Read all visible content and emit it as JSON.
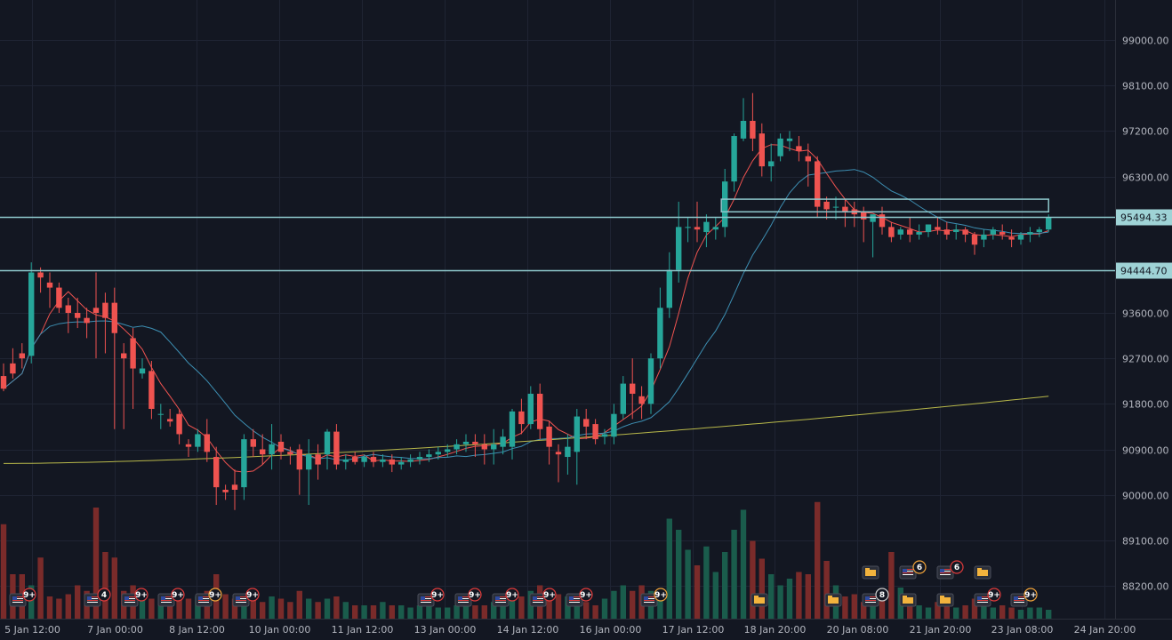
{
  "colors": {
    "background": "#131722",
    "grid": "#1f2433",
    "up": "#26a69a",
    "down": "#ef5350",
    "up_volume": "#1a5c4c",
    "down_volume": "#7a2b2a",
    "ma_fast": "#ef5350",
    "ma_slow": "#3d8fb3",
    "ma_long": "#b8b84a",
    "level_line": "#8ec9cd",
    "price_tag": "#9fd3d6",
    "event_badge_red": "#e03b3b",
    "event_badge_orange": "#f2a43a",
    "event_badge_gray": "#cccccc"
  },
  "chart_data": {
    "type": "candlestick",
    "y_ticks": [
      "99000.00",
      "98100.00",
      "97200.00",
      "96300.00",
      "93600.00",
      "92700.00",
      "91800.00",
      "90900.00",
      "90000.00",
      "89100.00",
      "88200.00"
    ],
    "x_ticks": [
      "5 Jan 12:00",
      "7 Jan 00:00",
      "8 Jan 12:00",
      "10 Jan 00:00",
      "11 Jan 12:00",
      "13 Jan 00:00",
      "14 Jan 12:00",
      "16 Jan 00:00",
      "17 Jan 12:00",
      "18 Jan 20:00",
      "20 Jan 08:00",
      "21 Jan 20:00",
      "23 Jan 08:00",
      "24 Jan 20:00"
    ],
    "ylim": [
      87800,
      99800
    ],
    "price_levels": [
      {
        "value": 95494.33,
        "label": "95494.33"
      },
      {
        "value": 94444.7,
        "label": "94444.70"
      }
    ],
    "zone": {
      "top": 95850,
      "bottom": 95600,
      "from_index": 78,
      "to_index": 113
    },
    "candles": [
      [
        92350,
        92600,
        92100,
        92050
      ],
      [
        92600,
        92900,
        92400,
        92300
      ],
      [
        92800,
        93000,
        92700,
        92500
      ],
      [
        92750,
        94600,
        94400,
        92600
      ],
      [
        94400,
        94500,
        94300,
        94000
      ],
      [
        94200,
        94400,
        94100,
        93700
      ],
      [
        94100,
        94200,
        93700,
        93600
      ],
      [
        93750,
        93900,
        93600,
        93200
      ],
      [
        93600,
        93900,
        93500,
        93300
      ],
      [
        93500,
        93700,
        93400,
        93100
      ],
      [
        93700,
        94400,
        93600,
        92700
      ],
      [
        93800,
        94000,
        93500,
        92800
      ],
      [
        93800,
        94100,
        93200,
        91300
      ],
      [
        92800,
        93000,
        92700,
        91300
      ],
      [
        93100,
        93300,
        92500,
        91700
      ],
      [
        92400,
        92700,
        92500,
        92300
      ],
      [
        92450,
        92650,
        91700,
        91500
      ],
      [
        91600,
        91800,
        91600,
        91300
      ],
      [
        91500,
        91700,
        91450,
        91350
      ],
      [
        91600,
        91700,
        91200,
        91000
      ],
      [
        91000,
        91100,
        90950,
        90750
      ],
      [
        90950,
        91300,
        91200,
        90850
      ],
      [
        91200,
        91500,
        90850,
        90650
      ],
      [
        90750,
        90950,
        90150,
        89800
      ],
      [
        90100,
        90200,
        90050,
        89900
      ],
      [
        90200,
        90500,
        90100,
        89700
      ],
      [
        90150,
        91200,
        91100,
        89900
      ],
      [
        91100,
        91300,
        90950,
        90750
      ],
      [
        90900,
        91200,
        90800,
        90600
      ],
      [
        90800,
        91400,
        91000,
        90500
      ],
      [
        91050,
        91200,
        90850,
        90700
      ],
      [
        90850,
        90950,
        90800,
        90600
      ],
      [
        90900,
        91000,
        90500,
        90000
      ],
      [
        90500,
        91100,
        90800,
        89800
      ],
      [
        90800,
        91000,
        90600,
        90300
      ],
      [
        90800,
        91300,
        91250,
        90500
      ],
      [
        91250,
        91400,
        90600,
        90500
      ],
      [
        90650,
        90800,
        90700,
        90500
      ],
      [
        90750,
        90850,
        90650,
        90600
      ],
      [
        90650,
        90800,
        90750,
        90550
      ],
      [
        90750,
        90850,
        90650,
        90550
      ],
      [
        90650,
        90800,
        90700,
        90550
      ],
      [
        90700,
        90800,
        90600,
        90450
      ],
      [
        90600,
        90750,
        90650,
        90500
      ],
      [
        90650,
        90800,
        90700,
        90550
      ],
      [
        90700,
        90850,
        90750,
        90600
      ],
      [
        90750,
        90900,
        90800,
        90650
      ],
      [
        90800,
        90950,
        90850,
        90700
      ],
      [
        90850,
        91000,
        90900,
        90750
      ],
      [
        90900,
        91100,
        91000,
        90800
      ],
      [
        91000,
        91200,
        91050,
        90850
      ],
      [
        91050,
        91200,
        91000,
        90750
      ],
      [
        91000,
        91200,
        90900,
        90600
      ],
      [
        90900,
        91300,
        91000,
        90600
      ],
      [
        90950,
        91300,
        91150,
        90800
      ],
      [
        90950,
        91700,
        91650,
        90700
      ],
      [
        91650,
        91900,
        91400,
        91200
      ],
      [
        91400,
        92150,
        92000,
        91300
      ],
      [
        92000,
        92200,
        91300,
        91100
      ],
      [
        91350,
        91450,
        90950,
        90600
      ],
      [
        90850,
        91000,
        90800,
        90250
      ],
      [
        90750,
        91200,
        90950,
        90400
      ],
      [
        90850,
        91700,
        91550,
        90200
      ],
      [
        91500,
        91700,
        91350,
        91100
      ],
      [
        91400,
        91500,
        91100,
        91000
      ],
      [
        91150,
        91300,
        91200,
        91000
      ],
      [
        91150,
        91800,
        91600,
        91000
      ],
      [
        91600,
        92350,
        92200,
        91500
      ],
      [
        92200,
        92700,
        92000,
        91500
      ],
      [
        91950,
        92150,
        91800,
        91500
      ],
      [
        91800,
        92800,
        92700,
        91600
      ],
      [
        92700,
        94100,
        93700,
        92500
      ],
      [
        93700,
        94800,
        94450,
        93500
      ],
      [
        94450,
        95800,
        95300,
        94200
      ],
      [
        95300,
        95500,
        95300,
        95000
      ],
      [
        95300,
        95800,
        95250,
        95000
      ],
      [
        95200,
        95550,
        95400,
        94900
      ],
      [
        95250,
        95500,
        95300,
        95050
      ],
      [
        95300,
        96450,
        96200,
        95100
      ],
      [
        96200,
        97150,
        97100,
        96000
      ],
      [
        97050,
        97850,
        97400,
        97000
      ],
      [
        97400,
        97950,
        97050,
        96800
      ],
      [
        97150,
        97350,
        96500,
        96300
      ],
      [
        96500,
        96950,
        96600,
        96200
      ],
      [
        96700,
        97150,
        97050,
        96600
      ],
      [
        97000,
        97200,
        97050,
        96800
      ],
      [
        96900,
        97100,
        96800,
        96600
      ],
      [
        96700,
        96950,
        96600,
        96100
      ],
      [
        96600,
        96700,
        95700,
        95500
      ],
      [
        95800,
        95900,
        95650,
        95450
      ],
      [
        95700,
        95900,
        95700,
        95450
      ],
      [
        95700,
        95850,
        95600,
        95300
      ],
      [
        95650,
        95800,
        95550,
        95300
      ],
      [
        95600,
        95700,
        95450,
        95000
      ],
      [
        95400,
        95500,
        95550,
        94700
      ],
      [
        95550,
        95700,
        95300,
        95150
      ],
      [
        95300,
        95400,
        95100,
        95000
      ],
      [
        95150,
        95300,
        95250,
        95050
      ],
      [
        95250,
        95500,
        95150,
        95000
      ],
      [
        95150,
        95350,
        95200,
        95050
      ],
      [
        95200,
        95350,
        95350,
        95100
      ],
      [
        95300,
        95500,
        95250,
        95150
      ],
      [
        95250,
        95400,
        95150,
        95050
      ],
      [
        95200,
        95350,
        95250,
        95050
      ],
      [
        95250,
        95300,
        95150,
        95000
      ],
      [
        95150,
        95200,
        94950,
        94750
      ],
      [
        95050,
        95250,
        95150,
        94900
      ],
      [
        95150,
        95300,
        95250,
        95050
      ],
      [
        95200,
        95350,
        95150,
        95050
      ],
      [
        95100,
        95250,
        95050,
        94900
      ],
      [
        95050,
        95200,
        95150,
        94950
      ],
      [
        95150,
        95300,
        95200,
        95000
      ],
      [
        95200,
        95300,
        95250,
        95100
      ],
      [
        95250,
        95550,
        95494,
        95200
      ]
    ],
    "ma_long_values": [
      90620,
      91950
    ]
  },
  "events": {
    "row1": [
      {
        "type": "us-flag",
        "count": "9+",
        "badge": "red"
      },
      {
        "type": "us-flag",
        "count": "4",
        "badge": "red"
      },
      {
        "type": "us-flag",
        "count": "9+",
        "badge": "red"
      },
      {
        "type": "us-flag",
        "count": "9+",
        "badge": "red"
      },
      {
        "type": "us-flag",
        "count": "9+",
        "badge": "orange"
      },
      {
        "type": "us-flag",
        "count": "9+",
        "badge": "red"
      },
      {
        "type": "us-flag",
        "count": "9+",
        "badge": "red"
      },
      {
        "type": "us-flag",
        "count": "9+",
        "badge": "red"
      },
      {
        "type": "us-flag",
        "count": "9+",
        "badge": "red"
      },
      {
        "type": "us-flag",
        "count": "9+",
        "badge": "red"
      },
      {
        "type": "us-flag",
        "count": "9+",
        "badge": "red"
      },
      {
        "type": "us-flag",
        "count": "9+",
        "badge": "orange"
      },
      {
        "type": "folder",
        "count": "",
        "badge": ""
      },
      {
        "type": "folder",
        "count": "",
        "badge": ""
      },
      {
        "type": "us-flag",
        "count": "8",
        "badge": "gray"
      },
      {
        "type": "folder",
        "count": "",
        "badge": ""
      },
      {
        "type": "folder",
        "count": "",
        "badge": ""
      },
      {
        "type": "us-flag",
        "count": "9+",
        "badge": "red"
      },
      {
        "type": "us-flag",
        "count": "9+",
        "badge": "orange"
      }
    ],
    "row2": [
      {
        "type": "folder",
        "count": "",
        "badge": ""
      },
      {
        "type": "us-flag",
        "count": "6",
        "badge": "orange"
      },
      {
        "type": "us-flag",
        "count": "6",
        "badge": "red"
      },
      {
        "type": "folder",
        "count": "",
        "badge": ""
      }
    ]
  }
}
